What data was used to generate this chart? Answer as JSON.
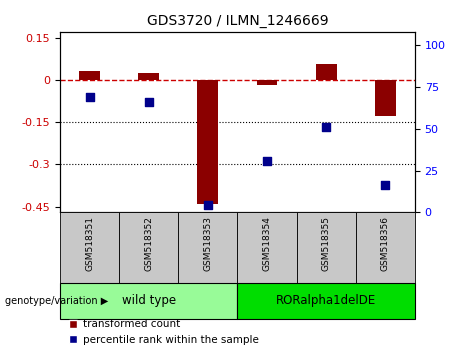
{
  "title": "GDS3720 / ILMN_1246669",
  "samples": [
    "GSM518351",
    "GSM518352",
    "GSM518353",
    "GSM518354",
    "GSM518355",
    "GSM518356"
  ],
  "red_values": [
    0.03,
    0.025,
    -0.44,
    -0.02,
    0.055,
    -0.13
  ],
  "blue_values": [
    65,
    62,
    1,
    27,
    47,
    13
  ],
  "ylim_left": [
    -0.47,
    0.17
  ],
  "ylim_right": [
    0,
    108
  ],
  "yticks_left": [
    0.15,
    0,
    -0.15,
    -0.3,
    -0.45
  ],
  "yticks_right": [
    100,
    75,
    50,
    25,
    0
  ],
  "dotted_lines": [
    -0.15,
    -0.3
  ],
  "bar_color": "#8B0000",
  "dot_color": "#00008B",
  "bar_width": 0.35,
  "dot_size": 40,
  "group1_label": "wild type",
  "group2_label": "RORalpha1delDE",
  "group1_color": "#98FB98",
  "group2_color": "#00DD00",
  "group_label_prefix": "genotype/variation",
  "legend_red": "transformed count",
  "legend_blue": "percentile rank within the sample",
  "group1_indices": [
    0,
    1,
    2
  ],
  "group2_indices": [
    3,
    4,
    5
  ],
  "background_label": "#C8C8C8",
  "red_dash_color": "#CC0000"
}
